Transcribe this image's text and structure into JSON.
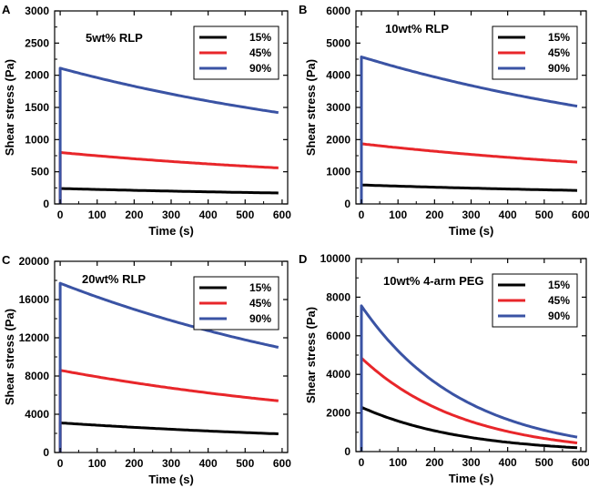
{
  "chart_data": [
    {
      "panel": "A",
      "type": "line",
      "title": "5wt% RLP",
      "xlabel": "Time (s)",
      "ylabel": "Shear stress (Pa)",
      "xlim": [
        -15,
        615
      ],
      "ylim": [
        0,
        3000
      ],
      "xticks": [
        0,
        100,
        200,
        300,
        400,
        500,
        600
      ],
      "yticks": [
        0,
        500,
        1000,
        1500,
        2000,
        2500,
        3000
      ],
      "legend_position": "top-right",
      "series": [
        {
          "name": "15%",
          "color": "#000000",
          "peak": 240,
          "end": 170
        },
        {
          "name": "45%",
          "color": "#e8262a",
          "peak": 800,
          "end": 560
        },
        {
          "name": "90%",
          "color": "#3a53a4",
          "peak": 2110,
          "end": 1420
        }
      ]
    },
    {
      "panel": "B",
      "type": "line",
      "title": "10wt% RLP",
      "xlabel": "Time (s)",
      "ylabel": "Shear stress (Pa)",
      "xlim": [
        -15,
        615
      ],
      "ylim": [
        0,
        6000
      ],
      "xticks": [
        0,
        100,
        200,
        300,
        400,
        500,
        600
      ],
      "yticks": [
        0,
        1000,
        2000,
        3000,
        4000,
        5000,
        6000
      ],
      "legend_position": "top-right",
      "series": [
        {
          "name": "15%",
          "color": "#000000",
          "peak": 590,
          "end": 420
        },
        {
          "name": "45%",
          "color": "#e8262a",
          "peak": 1870,
          "end": 1300
        },
        {
          "name": "90%",
          "color": "#3a53a4",
          "peak": 4570,
          "end": 3040
        }
      ]
    },
    {
      "panel": "C",
      "type": "line",
      "title": "20wt% RLP",
      "xlabel": "Time (s)",
      "ylabel": "Shear stress (Pa)",
      "xlim": [
        -15,
        615
      ],
      "ylim": [
        0,
        20000
      ],
      "xticks": [
        0,
        100,
        200,
        300,
        400,
        500,
        600
      ],
      "yticks": [
        0,
        4000,
        8000,
        12000,
        16000,
        20000
      ],
      "legend_position": "top-right",
      "series": [
        {
          "name": "15%",
          "color": "#000000",
          "peak": 3100,
          "end": 1950
        },
        {
          "name": "45%",
          "color": "#e8262a",
          "peak": 8600,
          "end": 5400
        },
        {
          "name": "90%",
          "color": "#3a53a4",
          "peak": 17700,
          "end": 11000
        }
      ]
    },
    {
      "panel": "D",
      "type": "line",
      "title": "10wt% 4-arm PEG",
      "xlabel": "Time (s)",
      "ylabel": "Shear stress (Pa)",
      "xlim": [
        -15,
        615
      ],
      "ylim": [
        0,
        10000
      ],
      "xticks": [
        0,
        100,
        200,
        300,
        400,
        500,
        600
      ],
      "yticks": [
        0,
        2000,
        4000,
        6000,
        8000,
        10000
      ],
      "legend_position": "top-right",
      "series": [
        {
          "name": "15%",
          "color": "#000000",
          "peak": 2300,
          "end": 200
        },
        {
          "name": "45%",
          "color": "#e8262a",
          "peak": 4850,
          "end": 450
        },
        {
          "name": "90%",
          "color": "#3a53a4",
          "peak": 7550,
          "end": 750
        }
      ]
    }
  ]
}
